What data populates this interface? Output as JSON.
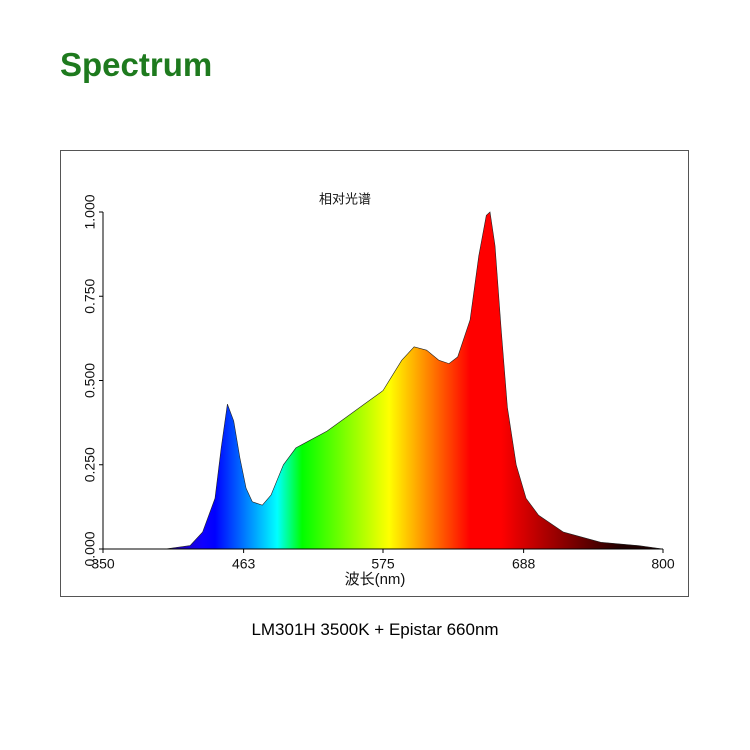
{
  "header": {
    "title": "Spectrum"
  },
  "caption": "LM301H 3500K + Epistar 660nm",
  "chart_data": {
    "type": "area",
    "title": "相对光谱",
    "xlabel": "波长(nm)",
    "x": [
      350,
      400,
      420,
      430,
      440,
      445,
      450,
      455,
      460,
      465,
      470,
      478,
      485,
      495,
      505,
      515,
      530,
      545,
      560,
      575,
      590,
      600,
      610,
      620,
      628,
      635,
      645,
      652,
      658,
      661,
      665,
      670,
      675,
      682,
      690,
      700,
      720,
      750,
      780,
      800
    ],
    "values": [
      0,
      0,
      0.01,
      0.05,
      0.15,
      0.3,
      0.43,
      0.38,
      0.27,
      0.18,
      0.14,
      0.13,
      0.16,
      0.25,
      0.3,
      0.32,
      0.35,
      0.39,
      0.43,
      0.47,
      0.56,
      0.6,
      0.59,
      0.56,
      0.55,
      0.57,
      0.68,
      0.87,
      0.99,
      1.0,
      0.9,
      0.65,
      0.42,
      0.25,
      0.15,
      0.1,
      0.05,
      0.02,
      0.01,
      0
    ],
    "xlim": [
      350,
      800
    ],
    "ylim": [
      0,
      1
    ],
    "xticks": [
      350,
      463,
      575,
      688,
      800
    ],
    "yticks": [
      {
        "value": 0,
        "label": "0.000"
      },
      {
        "value": 0.25,
        "label": "0.250"
      },
      {
        "value": 0.5,
        "label": "0.500"
      },
      {
        "value": 0.75,
        "label": "0.750"
      },
      {
        "value": 1,
        "label": "1.000"
      }
    ],
    "grid": false
  }
}
